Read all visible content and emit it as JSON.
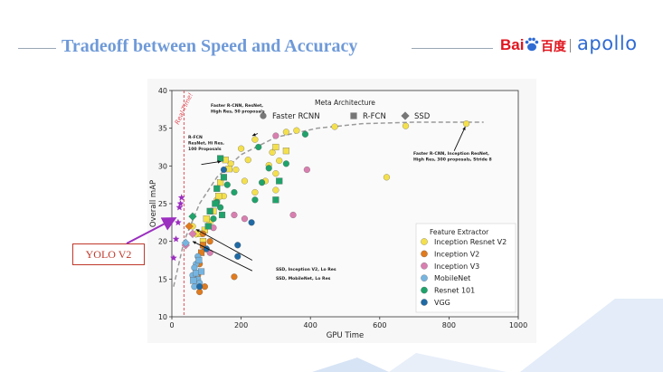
{
  "slide": {
    "title": "Tradeoff between Speed and Accuracy"
  },
  "logo": {
    "baidu_latin": "Bai",
    "baidu_hanzi": "百度",
    "apollo": "apollo"
  },
  "callout": {
    "label": "YOLO V2"
  },
  "colors": {
    "title": "#6f9ad8",
    "baidu_red": "#e0141e",
    "apollo_blue": "#2f6bd3",
    "realtime": "#e0505a",
    "frontier": "#9a9a9a",
    "yolo_star": "#9b2fbf",
    "callout_red": "#c0392b"
  },
  "chart_data": {
    "type": "scatter",
    "xlabel": "GPU Time",
    "ylabel": "Overall mAP",
    "xlim": [
      0,
      1000
    ],
    "ylim": [
      10,
      40
    ],
    "xticks": [
      0,
      200,
      400,
      600,
      800,
      1000
    ],
    "yticks": [
      10,
      15,
      20,
      25,
      30,
      35,
      40
    ],
    "realtime_label": "Real-Time!",
    "realtime_x": 35,
    "legend_meta": {
      "title": "Meta Architecture",
      "items": [
        {
          "name": "Faster RCNN",
          "shape": "circle"
        },
        {
          "name": "R-FCN",
          "shape": "square"
        },
        {
          "name": "SSD",
          "shape": "diamond"
        }
      ]
    },
    "legend_feature": {
      "title": "Feature Extractor",
      "items": [
        {
          "name": "Inception Resnet V2",
          "color": "#f4e04d"
        },
        {
          "name": "Inception V2",
          "color": "#e07b1e"
        },
        {
          "name": "Inception V3",
          "color": "#d97fb0"
        },
        {
          "name": "MobileNet",
          "color": "#76b5e0"
        },
        {
          "name": "Resnet 101",
          "color": "#1fa36b"
        },
        {
          "name": "VGG",
          "color": "#1f6aa5"
        }
      ]
    },
    "annotations": [
      {
        "id": "frcnn",
        "lines": [
          "Faster R-CNN, ResNet,",
          "High Res, 50 proposals"
        ]
      },
      {
        "id": "rfcn",
        "lines": [
          "R-FCN",
          "ResNet, Hi Res,",
          "100 Proposals"
        ]
      },
      {
        "id": "frcnn_irv2",
        "lines": [
          "Faster R-CNN, Inception ResNet,",
          "High Res, 300 proposals, Stride 8"
        ]
      },
      {
        "id": "ssd_incv2",
        "lines": [
          "SSD, Inception V2, Lo Res"
        ]
      },
      {
        "id": "ssd_mobilenet",
        "lines": [
          "SSD, MobileNet, Lo Res"
        ]
      }
    ],
    "frontier": [
      [
        5,
        14
      ],
      [
        35,
        20
      ],
      [
        80,
        25
      ],
      [
        130,
        28.5
      ],
      [
        200,
        31.5
      ],
      [
        300,
        33.8
      ],
      [
        420,
        35
      ],
      [
        550,
        35.6
      ],
      [
        700,
        35.8
      ],
      [
        900,
        35.8
      ]
    ],
    "yolo_v2_points": [
      [
        5,
        17.8
      ],
      [
        12,
        20.3
      ],
      [
        18,
        22.5
      ],
      [
        22,
        24.5
      ],
      [
        28,
        25.8
      ],
      [
        25,
        25
      ]
    ],
    "points": [
      {
        "x": 850,
        "y": 35.6,
        "arch": "Faster RCNN",
        "feat": "Inception Resnet V2"
      },
      {
        "x": 675,
        "y": 35.3,
        "arch": "Faster RCNN",
        "feat": "Inception Resnet V2"
      },
      {
        "x": 620,
        "y": 28.5,
        "arch": "Faster RCNN",
        "feat": "Inception Resnet V2"
      },
      {
        "x": 470,
        "y": 35.2,
        "arch": "Faster RCNN",
        "feat": "Inception Resnet V2"
      },
      {
        "x": 360,
        "y": 34.7,
        "arch": "Faster RCNN",
        "feat": "Inception Resnet V2"
      },
      {
        "x": 330,
        "y": 34.5,
        "arch": "Faster RCNN",
        "feat": "Inception Resnet V2"
      },
      {
        "x": 290,
        "y": 31.8,
        "arch": "Faster RCNN",
        "feat": "Inception Resnet V2"
      },
      {
        "x": 240,
        "y": 33.5,
        "arch": "Faster RCNN",
        "feat": "Inception Resnet V2"
      },
      {
        "x": 310,
        "y": 30.7,
        "arch": "Faster RCNN",
        "feat": "Inception Resnet V2"
      },
      {
        "x": 280,
        "y": 30.1,
        "arch": "Faster RCNN",
        "feat": "Inception Resnet V2"
      },
      {
        "x": 300,
        "y": 29.0,
        "arch": "Faster RCNN",
        "feat": "Inception Resnet V2"
      },
      {
        "x": 270,
        "y": 28.0,
        "arch": "Faster RCNN",
        "feat": "Inception Resnet V2"
      },
      {
        "x": 210,
        "y": 28.0,
        "arch": "Faster RCNN",
        "feat": "Inception Resnet V2"
      },
      {
        "x": 220,
        "y": 30.8,
        "arch": "Faster RCNN",
        "feat": "Inception Resnet V2"
      },
      {
        "x": 200,
        "y": 32.3,
        "arch": "Faster RCNN",
        "feat": "Inception Resnet V2"
      },
      {
        "x": 170,
        "y": 30.3,
        "arch": "Faster RCNN",
        "feat": "Inception Resnet V2"
      },
      {
        "x": 185,
        "y": 29.5,
        "arch": "Faster RCNN",
        "feat": "Inception Resnet V2"
      },
      {
        "x": 240,
        "y": 26.5,
        "arch": "Faster RCNN",
        "feat": "Inception Resnet V2"
      },
      {
        "x": 300,
        "y": 26.8,
        "arch": "Faster RCNN",
        "feat": "Inception Resnet V2"
      },
      {
        "x": 150,
        "y": 26.0,
        "arch": "Faster RCNN",
        "feat": "Inception Resnet V2"
      },
      {
        "x": 130,
        "y": 25.5,
        "arch": "Faster RCNN",
        "feat": "Inception Resnet V2"
      },
      {
        "x": 110,
        "y": 22.5,
        "arch": "Faster RCNN",
        "feat": "Inception Resnet V2"
      },
      {
        "x": 60,
        "y": 22.0,
        "arch": "Faster RCNN",
        "feat": "Inception Resnet V2"
      },
      {
        "x": 155,
        "y": 30.8,
        "arch": "R-FCN",
        "feat": "Inception Resnet V2"
      },
      {
        "x": 165,
        "y": 29.6,
        "arch": "R-FCN",
        "feat": "Inception Resnet V2"
      },
      {
        "x": 140,
        "y": 27.8,
        "arch": "R-FCN",
        "feat": "Inception Resnet V2"
      },
      {
        "x": 135,
        "y": 26.0,
        "arch": "R-FCN",
        "feat": "Inception Resnet V2"
      },
      {
        "x": 120,
        "y": 24.0,
        "arch": "R-FCN",
        "feat": "Inception Resnet V2"
      },
      {
        "x": 100,
        "y": 23.0,
        "arch": "R-FCN",
        "feat": "Inception Resnet V2"
      },
      {
        "x": 330,
        "y": 32.0,
        "arch": "R-FCN",
        "feat": "Inception Resnet V2"
      },
      {
        "x": 300,
        "y": 32.5,
        "arch": "R-FCN",
        "feat": "Inception Resnet V2"
      },
      {
        "x": 95,
        "y": 21.5,
        "arch": "R-FCN",
        "feat": "Inception Resnet V2"
      },
      {
        "x": 80,
        "y": 21.0,
        "arch": "R-FCN",
        "feat": "Inception Resnet V2"
      },
      {
        "x": 90,
        "y": 20.0,
        "arch": "R-FCN",
        "feat": "Inception Resnet V2"
      },
      {
        "x": 70,
        "y": 21.0,
        "arch": "SSD",
        "feat": "Inception Resnet V2"
      },
      {
        "x": 50,
        "y": 22.0,
        "arch": "SSD",
        "feat": "Inception V2"
      },
      {
        "x": 90,
        "y": 21.0,
        "arch": "Faster RCNN",
        "feat": "Inception V2"
      },
      {
        "x": 110,
        "y": 20.0,
        "arch": "Faster RCNN",
        "feat": "Inception V2"
      },
      {
        "x": 80,
        "y": 17.0,
        "arch": "Faster RCNN",
        "feat": "Inception V2"
      },
      {
        "x": 75,
        "y": 15.5,
        "arch": "Faster RCNN",
        "feat": "Inception V2"
      },
      {
        "x": 95,
        "y": 14.0,
        "arch": "Faster RCNN",
        "feat": "Inception V2"
      },
      {
        "x": 80,
        "y": 13.3,
        "arch": "Faster RCNN",
        "feat": "Inception V2"
      },
      {
        "x": 180,
        "y": 15.3,
        "arch": "Faster RCNN",
        "feat": "Inception V2"
      },
      {
        "x": 90,
        "y": 19.5,
        "arch": "R-FCN",
        "feat": "Inception V2"
      },
      {
        "x": 95,
        "y": 19.0,
        "arch": "R-FCN",
        "feat": "Inception V2"
      },
      {
        "x": 85,
        "y": 18.5,
        "arch": "R-FCN",
        "feat": "Inception V2"
      },
      {
        "x": 300,
        "y": 34.0,
        "arch": "Faster RCNN",
        "feat": "Inception V3"
      },
      {
        "x": 390,
        "y": 29.5,
        "arch": "Faster RCNN",
        "feat": "Inception V3"
      },
      {
        "x": 350,
        "y": 23.5,
        "arch": "Faster RCNN",
        "feat": "Inception V3"
      },
      {
        "x": 210,
        "y": 23.0,
        "arch": "Faster RCNN",
        "feat": "Inception V3"
      },
      {
        "x": 180,
        "y": 23.5,
        "arch": "Faster RCNN",
        "feat": "Inception V3"
      },
      {
        "x": 110,
        "y": 18.5,
        "arch": "Faster RCNN",
        "feat": "Inception V3"
      },
      {
        "x": 120,
        "y": 21.8,
        "arch": "Faster RCNN",
        "feat": "Inception V3"
      },
      {
        "x": 60,
        "y": 21.0,
        "arch": "SSD",
        "feat": "Inception V3"
      },
      {
        "x": 40,
        "y": 19.5,
        "arch": "SSD",
        "feat": "Inception V3"
      },
      {
        "x": 75,
        "y": 18.0,
        "arch": "Faster RCNN",
        "feat": "MobileNet"
      },
      {
        "x": 70,
        "y": 17.0,
        "arch": "Faster RCNN",
        "feat": "MobileNet"
      },
      {
        "x": 65,
        "y": 16.5,
        "arch": "Faster RCNN",
        "feat": "MobileNet"
      },
      {
        "x": 60,
        "y": 15.5,
        "arch": "Faster RCNN",
        "feat": "MobileNet"
      },
      {
        "x": 75,
        "y": 15.0,
        "arch": "Faster RCNN",
        "feat": "MobileNet"
      },
      {
        "x": 80,
        "y": 14.5,
        "arch": "Faster RCNN",
        "feat": "MobileNet"
      },
      {
        "x": 65,
        "y": 14.0,
        "arch": "Faster RCNN",
        "feat": "MobileNet"
      },
      {
        "x": 70,
        "y": 15.8,
        "arch": "R-FCN",
        "feat": "MobileNet"
      },
      {
        "x": 85,
        "y": 16.0,
        "arch": "R-FCN",
        "feat": "MobileNet"
      },
      {
        "x": 62,
        "y": 14.8,
        "arch": "R-FCN",
        "feat": "MobileNet"
      },
      {
        "x": 78,
        "y": 17.5,
        "arch": "R-FCN",
        "feat": "MobileNet"
      },
      {
        "x": 40,
        "y": 19.8,
        "arch": "SSD",
        "feat": "MobileNet"
      },
      {
        "x": 280,
        "y": 29.7,
        "arch": "Faster RCNN",
        "feat": "Resnet 101"
      },
      {
        "x": 330,
        "y": 30.3,
        "arch": "Faster RCNN",
        "feat": "Resnet 101"
      },
      {
        "x": 385,
        "y": 34.2,
        "arch": "Faster RCNN",
        "feat": "Resnet 101"
      },
      {
        "x": 250,
        "y": 32.5,
        "arch": "Faster RCNN",
        "feat": "Resnet 101"
      },
      {
        "x": 260,
        "y": 27.8,
        "arch": "Faster RCNN",
        "feat": "Resnet 101"
      },
      {
        "x": 240,
        "y": 25.5,
        "arch": "Faster RCNN",
        "feat": "Resnet 101"
      },
      {
        "x": 180,
        "y": 26.5,
        "arch": "Faster RCNN",
        "feat": "Resnet 101"
      },
      {
        "x": 160,
        "y": 27.5,
        "arch": "Faster RCNN",
        "feat": "Resnet 101"
      },
      {
        "x": 140,
        "y": 24.5,
        "arch": "Faster RCNN",
        "feat": "Resnet 101"
      },
      {
        "x": 130,
        "y": 25.2,
        "arch": "Faster RCNN",
        "feat": "Resnet 101"
      },
      {
        "x": 120,
        "y": 23.0,
        "arch": "Faster RCNN",
        "feat": "Resnet 101"
      },
      {
        "x": 140,
        "y": 31.0,
        "arch": "R-FCN",
        "feat": "Resnet 101"
      },
      {
        "x": 150,
        "y": 28.5,
        "arch": "R-FCN",
        "feat": "Resnet 101"
      },
      {
        "x": 130,
        "y": 27.0,
        "arch": "R-FCN",
        "feat": "Resnet 101"
      },
      {
        "x": 125,
        "y": 25.0,
        "arch": "R-FCN",
        "feat": "Resnet 101"
      },
      {
        "x": 110,
        "y": 24.0,
        "arch": "R-FCN",
        "feat": "Resnet 101"
      },
      {
        "x": 105,
        "y": 22.0,
        "arch": "R-FCN",
        "feat": "Resnet 101"
      },
      {
        "x": 145,
        "y": 23.5,
        "arch": "R-FCN",
        "feat": "Resnet 101"
      },
      {
        "x": 310,
        "y": 28.0,
        "arch": "R-FCN",
        "feat": "Resnet 101"
      },
      {
        "x": 300,
        "y": 25.5,
        "arch": "R-FCN",
        "feat": "Resnet 101"
      },
      {
        "x": 60,
        "y": 23.3,
        "arch": "SSD",
        "feat": "Resnet 101"
      },
      {
        "x": 150,
        "y": 29.5,
        "arch": "Faster RCNN",
        "feat": "VGG"
      },
      {
        "x": 190,
        "y": 19.5,
        "arch": "Faster RCNN",
        "feat": "VGG"
      },
      {
        "x": 190,
        "y": 18.0,
        "arch": "Faster RCNN",
        "feat": "VGG"
      },
      {
        "x": 230,
        "y": 22.5,
        "arch": "Faster RCNN",
        "feat": "VGG"
      },
      {
        "x": 100,
        "y": 19.0,
        "arch": "Faster RCNN",
        "feat": "VGG"
      },
      {
        "x": 80,
        "y": 14.0,
        "arch": "Faster RCNN",
        "feat": "VGG"
      }
    ]
  }
}
